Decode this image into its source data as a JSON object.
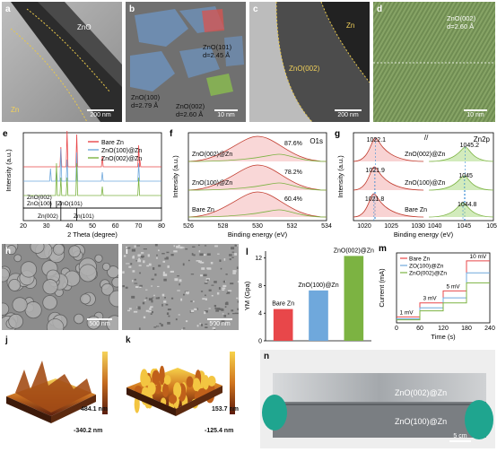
{
  "panels": {
    "a": {
      "label": "a",
      "material": "ZnO",
      "substrate": "Zn",
      "scale": "200 nm"
    },
    "b": {
      "label": "b",
      "ann1": "ZnO(101)",
      "ann1d": "d=2.45 Å",
      "ann2": "ZnO(100)",
      "ann2d": "d=2.79 Å",
      "ann3": "ZnO(002)",
      "ann3d": "d=2.60 Å",
      "scale": "10 nm"
    },
    "c": {
      "label": "c",
      "material": "ZnO(002)",
      "substrate": "Zn",
      "scale": "200 nm"
    },
    "d": {
      "label": "d",
      "ann": "ZnO(002)",
      "annd": "d=2.60 Å",
      "scale": "10 nm"
    },
    "h": {
      "label": "h",
      "scale": "500 nm"
    },
    "i": {
      "label": "i",
      "scale": "500 nm"
    },
    "j": {
      "label": "j",
      "max": "484.1 nm",
      "min": "-340.2 nm"
    },
    "k": {
      "label": "k",
      "max": "153.7 nm",
      "min": "-125.4 nm"
    },
    "n": {
      "label": "n",
      "top": "ZnO(002)@Zn",
      "bottom": "ZnO(100)@Zn",
      "scale": "5 cm"
    }
  },
  "colors": {
    "bare": "#e8474a",
    "zno100": "#6fa8dc",
    "zno002": "#7cb342"
  },
  "chart_data": [
    {
      "panel": "e",
      "type": "line",
      "xlabel": "2 Theta (degree)",
      "ylabel": "Intensity (a.u.)",
      "xlim": [
        20,
        80
      ],
      "xticks": [
        20,
        30,
        40,
        50,
        60,
        70,
        80
      ],
      "series": [
        {
          "name": "Bare Zn",
          "peaks": [
            [
              36.3,
              0.55
            ],
            [
              39.0,
              1.0
            ],
            [
              43.2,
              0.9
            ],
            [
              54.3,
              0.3
            ],
            [
              70.1,
              0.6
            ],
            [
              70.6,
              0.2
            ]
          ]
        },
        {
          "name": "ZnO(100)@Zn",
          "peaks": [
            [
              31.8,
              0.35
            ],
            [
              34.4,
              0.3
            ],
            [
              36.3,
              0.9
            ],
            [
              39.0,
              0.6
            ],
            [
              43.2,
              0.8
            ],
            [
              54.3,
              0.25
            ],
            [
              70.1,
              0.5
            ]
          ]
        },
        {
          "name": "ZnO(002)@Zn",
          "peaks": [
            [
              34.4,
              0.9
            ],
            [
              36.3,
              0.5
            ],
            [
              39.0,
              0.5
            ],
            [
              43.2,
              0.9
            ],
            [
              54.3,
              0.25
            ],
            [
              70.1,
              0.5
            ]
          ]
        }
      ],
      "references": [
        {
          "name": "ZnO(002)",
          "x": 34.4
        },
        {
          "name": "ZnO(100)",
          "x": 31.8
        },
        {
          "name": "ZnO(101)",
          "x": 36.3
        },
        {
          "name": "Zn(002)",
          "x": 36.3
        },
        {
          "name": "Zn(101)",
          "x": 43.2
        }
      ]
    },
    {
      "panel": "f",
      "type": "line",
      "title": "O1s",
      "xlabel": "Binding energy (eV)",
      "ylabel": "Intensity (a.u.)",
      "xlim": [
        526,
        534
      ],
      "xticks": [
        526,
        528,
        530,
        532,
        534
      ],
      "series": [
        {
          "name": "ZnO(002)@Zn",
          "percent": "87.6%",
          "center": 530.0
        },
        {
          "name": "ZnO(100)@Zn",
          "percent": "78.2%",
          "center": 530.0
        },
        {
          "name": "Bare Zn",
          "percent": "60.4%",
          "center": 530.0
        }
      ]
    },
    {
      "panel": "g",
      "type": "line",
      "title": "Zn2p",
      "xlabel": "Binding energy (eV)",
      "ylabel": "Intensity (a.u.)",
      "xlim": [
        1018,
        1050
      ],
      "xticks": [
        1020,
        1025,
        1030,
        1040,
        1045,
        1050
      ],
      "series": [
        {
          "name": "ZnO(002)@Zn",
          "peaks": [
            1022.1,
            1045.2
          ]
        },
        {
          "name": "ZnO(100)@Zn",
          "peaks": [
            1021.9,
            1045.0
          ]
        },
        {
          "name": "Bare Zn",
          "peaks": [
            1021.8,
            1044.8
          ]
        }
      ]
    },
    {
      "panel": "l",
      "type": "bar",
      "ylabel": "YM (Gpa)",
      "ylim": [
        0,
        13
      ],
      "yticks": [
        0,
        4,
        8,
        12
      ],
      "categories": [
        "Bare Zn",
        "ZnO(100)@Zn",
        "ZnO(002)@Zn"
      ],
      "values": [
        4.6,
        7.3,
        12.3
      ]
    },
    {
      "panel": "m",
      "type": "line",
      "xlabel": "Time (s)",
      "ylabel": "Current (mA)",
      "xlim": [
        0,
        240
      ],
      "ylim": [
        0,
        70
      ],
      "xticks": [
        0,
        60,
        120,
        180,
        240
      ],
      "steps": [
        "1 mV",
        "3 mV",
        "5 mV",
        "10 mV"
      ],
      "series": [
        {
          "name": "Bare Zn",
          "values": [
            6,
            20,
            32,
            62
          ]
        },
        {
          "name": "ZO(100)@Zn",
          "values": [
            4,
            15,
            25,
            50
          ]
        },
        {
          "name": "ZnO(002)@Zn",
          "values": [
            3,
            12,
            20,
            40
          ]
        }
      ]
    }
  ]
}
